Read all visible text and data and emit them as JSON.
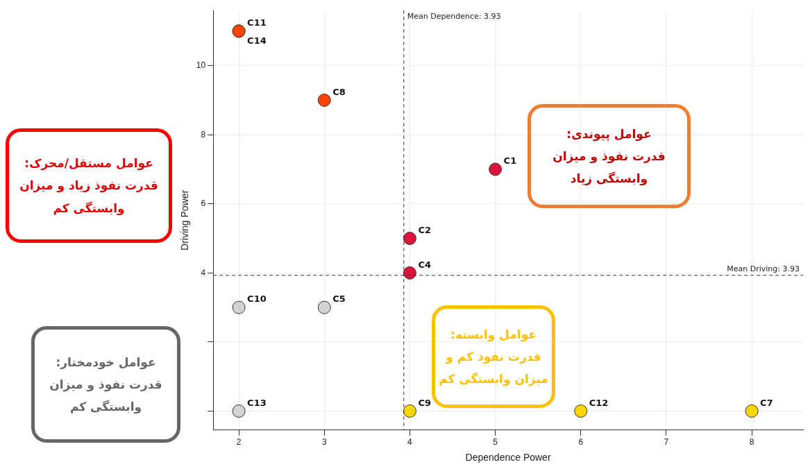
{
  "chart_data": {
    "type": "scatter",
    "xlabel": "Dependence Power",
    "ylabel": "Driving Power",
    "xlim": [
      1.7,
      8.6
    ],
    "ylim": [
      -0.55,
      11.6
    ],
    "xticks": [
      2,
      3,
      4,
      5,
      6,
      7,
      8
    ],
    "yticks": [
      {
        "value": 0,
        "label": null
      },
      {
        "value": 2,
        "label": null
      },
      4,
      6,
      8,
      10
    ],
    "grid": true,
    "legend": false,
    "marker": "circle",
    "series": [
      {
        "color": "#ff4500",
        "x": [
          2,
          2,
          3
        ],
        "values": [
          11,
          11,
          9
        ],
        "value_labels": [
          "C11",
          "C14",
          "C8"
        ]
      },
      {
        "color": "#dc143c",
        "x": [
          5,
          4,
          4
        ],
        "values": [
          7,
          5,
          4
        ],
        "value_labels": [
          "C1",
          "C2",
          "C4"
        ]
      },
      {
        "color": "#d3d3d3",
        "x": [
          2,
          3,
          2
        ],
        "values": [
          3,
          3,
          0
        ],
        "value_labels": [
          "C10",
          "C5",
          "C13"
        ]
      },
      {
        "color": "#ffd700",
        "x": [
          4,
          6,
          8
        ],
        "values": [
          0,
          0,
          0
        ],
        "value_labels": [
          "C9",
          "C12",
          "C7"
        ]
      }
    ],
    "ref_lines": [
      {
        "axis": "y",
        "value": 3.93,
        "label": "Mean Driving: 3.93",
        "line_style": "dashed"
      },
      {
        "axis": "x",
        "value": 3.93,
        "label": "Mean Dependence: 3.93",
        "line_style": "dashed"
      }
    ],
    "annotations": [
      "عوامل مستقل/محرک:\nقدرت نفوذ زیاد و میزان\nوابستگی کم",
      "عوامل پیوندی:\nقدرت نفوذ و میزان\nوابستگی زیاد",
      "عوامل خودمختار:\nقدرت نفوذ و میزان\nوابستگی کم",
      "عوامل وابسته:\nقدرت نفوذ کم و\nمیزان وابستگی کم"
    ]
  }
}
